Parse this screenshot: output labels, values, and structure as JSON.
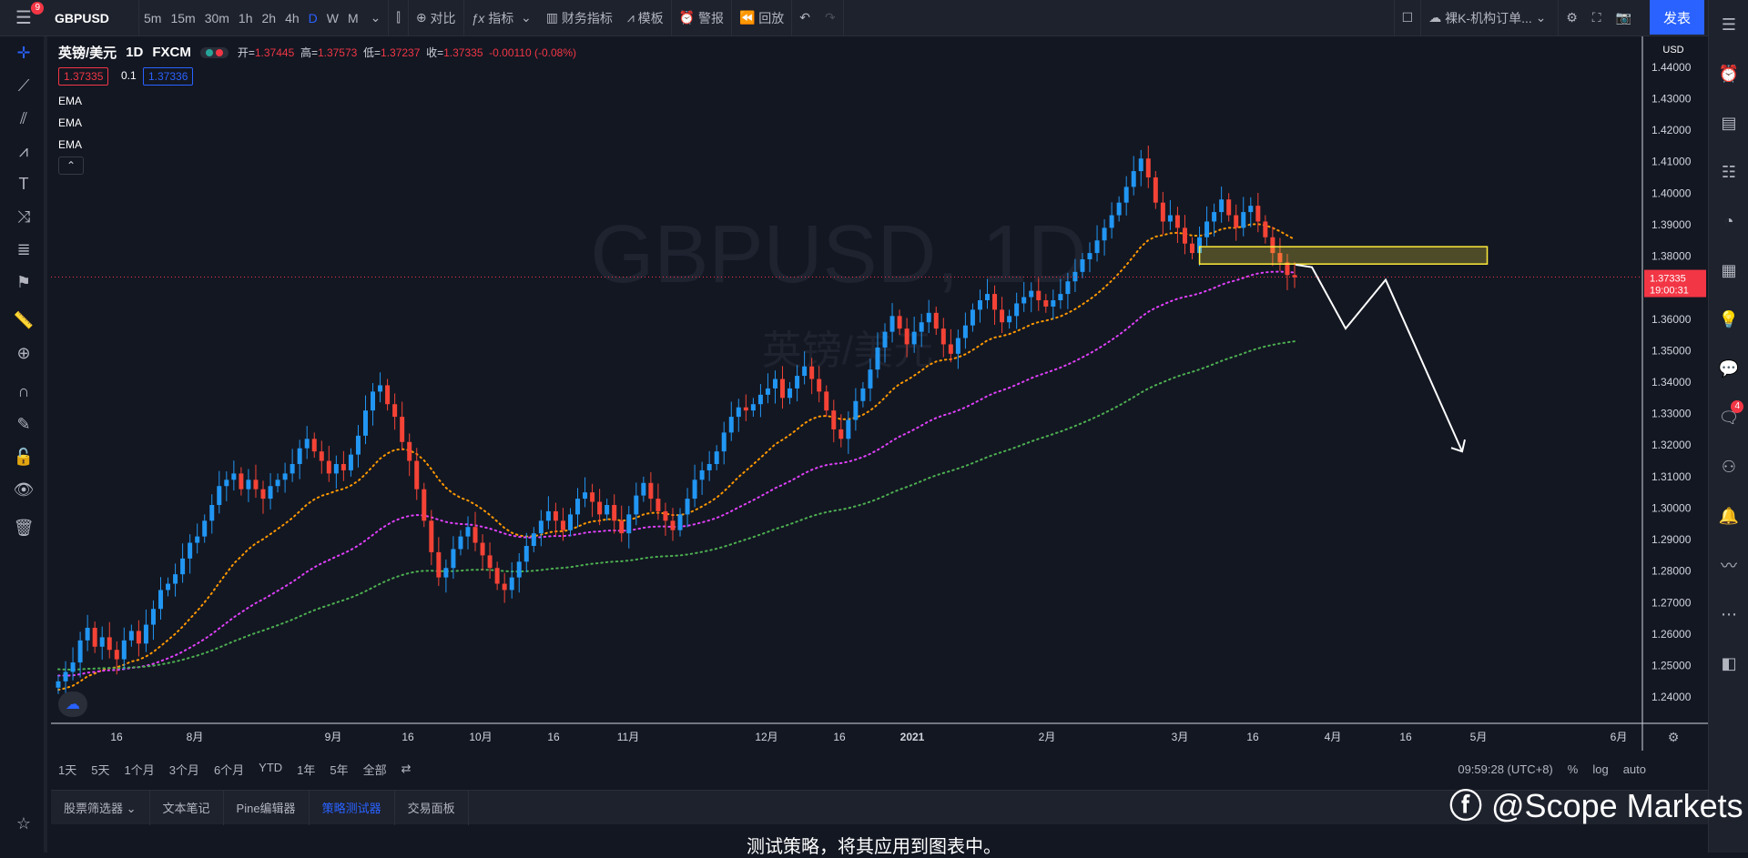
{
  "topbar": {
    "menu_badge": "9",
    "symbol": "GBPUSD",
    "intervals": [
      "5m",
      "15m",
      "30m",
      "1h",
      "2h",
      "4h",
      "D",
      "W",
      "M"
    ],
    "active_interval": "D",
    "compare": "对比",
    "indicators": "指标",
    "financials": "财务指标",
    "templates": "模板",
    "alerts": "警报",
    "replay": "回放",
    "layout_name": "裸K-机构订单...",
    "publish": "发表"
  },
  "legend": {
    "name": "英镑/美元",
    "interval": "1D",
    "exchange": "FXCM",
    "open_label": "开=",
    "open": "1.37445",
    "high_label": "高=",
    "high": "1.37573",
    "low_label": "低=",
    "low": "1.37237",
    "close_label": "收=",
    "close": "1.37335",
    "change": "-0.00110 (-0.08%)",
    "bid": "1.37335",
    "spread": "0.1",
    "ask": "1.37336",
    "indicators": [
      "EMA",
      "EMA",
      "EMA"
    ]
  },
  "chart_watermark": {
    "symbol": "GBPUSD, 1D",
    "name": "英镑/美元"
  },
  "price_axis": {
    "currency": "USD",
    "last_price": "1.37335",
    "countdown": "19:00:31"
  },
  "time_axis_labels": [
    "16",
    "8月",
    "9月",
    "16",
    "10月",
    "16",
    "11月",
    "12月",
    "16",
    "2021",
    "2月",
    "3月",
    "16",
    "4月",
    "16",
    "5月",
    "6月"
  ],
  "chart_data": {
    "type": "candlestick",
    "y_ticks": [
      "1.44000",
      "1.43000",
      "1.42000",
      "1.41000",
      "1.40000",
      "1.39000",
      "1.38000",
      "1.37000",
      "1.36000",
      "1.35000",
      "1.34000",
      "1.33000",
      "1.32000",
      "1.31000",
      "1.30000",
      "1.29000",
      "1.28000",
      "1.27000",
      "1.26000",
      "1.25000",
      "1.24000"
    ],
    "ylim": [
      1.236,
      1.444
    ],
    "candles_close": [
      1.245,
      1.248,
      1.251,
      1.258,
      1.262,
      1.256,
      1.259,
      1.255,
      1.252,
      1.258,
      1.261,
      1.257,
      1.263,
      1.268,
      1.274,
      1.276,
      1.279,
      1.284,
      1.289,
      1.291,
      1.296,
      1.301,
      1.307,
      1.309,
      1.311,
      1.306,
      1.309,
      1.306,
      1.303,
      1.307,
      1.309,
      1.311,
      1.314,
      1.319,
      1.322,
      1.318,
      1.315,
      1.311,
      1.314,
      1.312,
      1.317,
      1.323,
      1.331,
      1.337,
      1.339,
      1.333,
      1.329,
      1.321,
      1.315,
      1.306,
      1.296,
      1.286,
      1.278,
      1.281,
      1.287,
      1.291,
      1.294,
      1.289,
      1.285,
      1.281,
      1.276,
      1.274,
      1.278,
      1.283,
      1.288,
      1.292,
      1.296,
      1.299,
      1.296,
      1.293,
      1.298,
      1.303,
      1.305,
      1.302,
      1.298,
      1.301,
      1.296,
      1.292,
      1.298,
      1.304,
      1.308,
      1.303,
      1.299,
      1.296,
      1.293,
      1.298,
      1.303,
      1.309,
      1.312,
      1.314,
      1.318,
      1.324,
      1.329,
      1.332,
      1.331,
      1.333,
      1.336,
      1.338,
      1.341,
      1.335,
      1.338,
      1.342,
      1.345,
      1.341,
      1.337,
      1.331,
      1.325,
      1.322,
      1.328,
      1.334,
      1.338,
      1.344,
      1.351,
      1.356,
      1.361,
      1.357,
      1.352,
      1.356,
      1.359,
      1.362,
      1.357,
      1.352,
      1.349,
      1.354,
      1.358,
      1.363,
      1.366,
      1.368,
      1.363,
      1.359,
      1.361,
      1.365,
      1.367,
      1.369,
      1.366,
      1.364,
      1.366,
      1.368,
      1.372,
      1.375,
      1.379,
      1.381,
      1.385,
      1.389,
      1.393,
      1.397,
      1.402,
      1.407,
      1.411,
      1.405,
      1.397,
      1.391,
      1.393,
      1.389,
      1.384,
      1.381,
      1.386,
      1.391,
      1.394,
      1.398,
      1.393,
      1.389,
      1.394,
      1.396,
      1.391,
      1.386,
      1.381,
      1.378,
      1.374,
      1.3733
    ],
    "series": [
      {
        "name": "EMA",
        "color": "#ff9800"
      },
      {
        "name": "EMA",
        "color": "#e040fb"
      },
      {
        "name": "EMA",
        "color": "#4caf50"
      }
    ],
    "zone": {
      "from": 1.3775,
      "to": 1.383
    },
    "projection": [
      1.3773,
      1.3765,
      1.357,
      1.3725,
      1.318
    ]
  },
  "bottom_toolbar": {
    "ranges": [
      "1天",
      "5天",
      "1个月",
      "3个月",
      "6个月",
      "YTD",
      "1年",
      "5年",
      "全部"
    ],
    "clock": "09:59:28 (UTC+8)",
    "pct": "%",
    "log": "log",
    "auto": "auto"
  },
  "bottom_tabs": [
    "股票筛选器",
    "文本笔记",
    "Pine编辑器",
    "策略测试器",
    "交易面板"
  ],
  "active_tab": "策略测试器",
  "panel_message": "测试策略，将其应用到图表中。",
  "brand_watermark": "@Scope Markets",
  "right_badge": "4"
}
